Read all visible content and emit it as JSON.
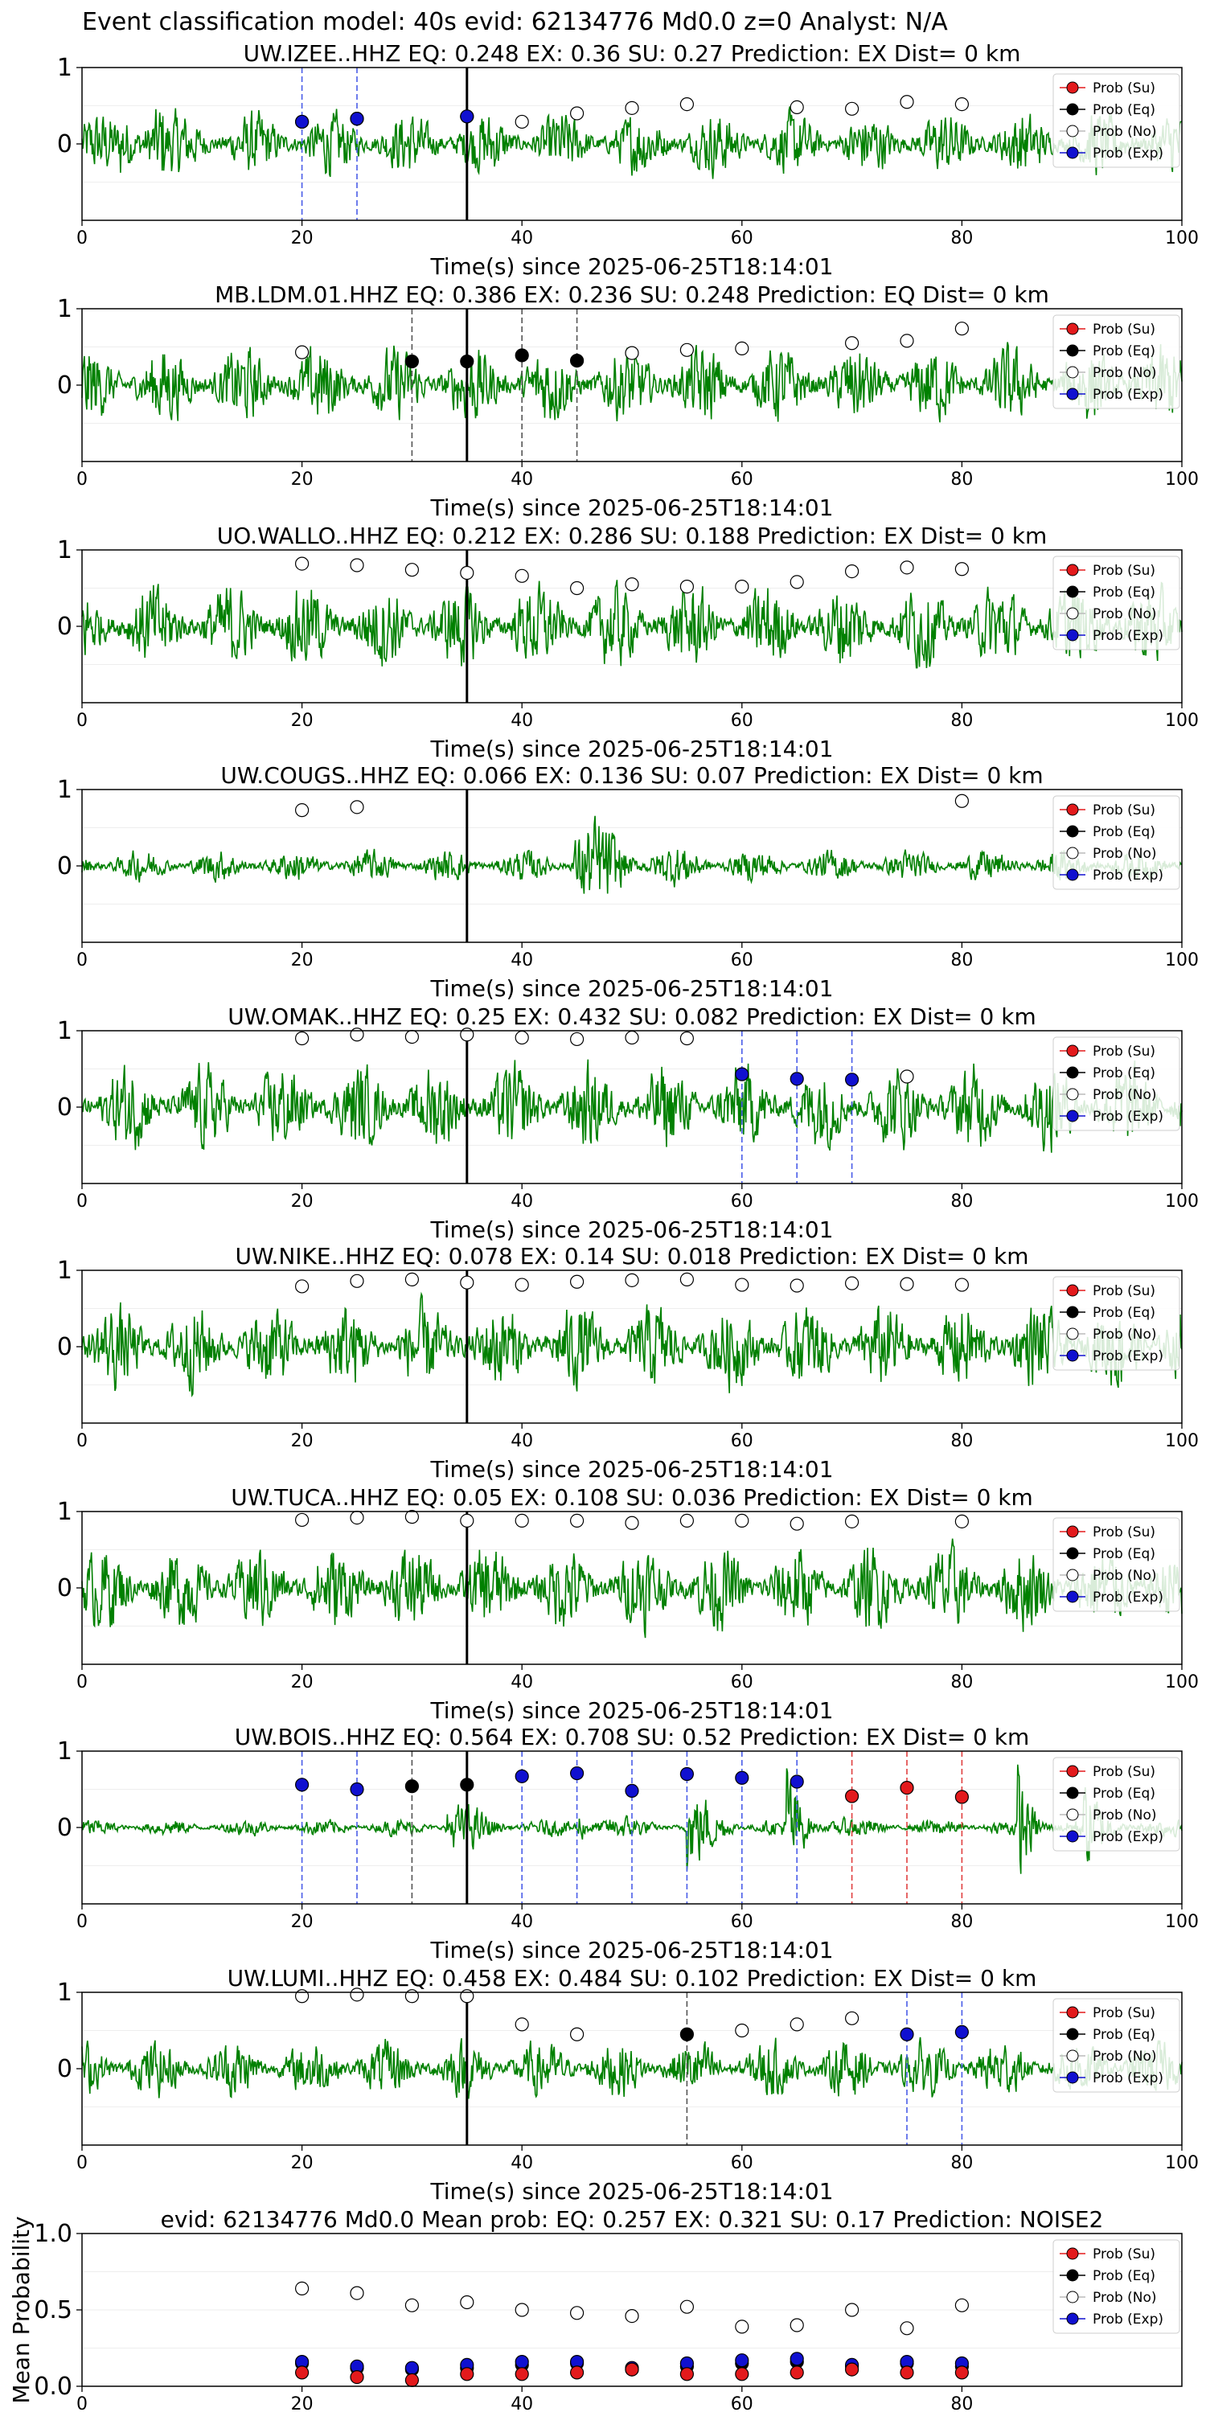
{
  "suptitle": "Event classification model: 40s evid: 62134776 Md0.0 z=0 Analyst: N/A",
  "legend_labels": [
    "Prob (Su)",
    "Prob (Eq)",
    "Prob (No)",
    "Prob (Exp)"
  ],
  "colors": {
    "waveform": "#008000",
    "su": "#e31a1c",
    "eq": "#000000",
    "no": "#ffffff",
    "exp": "#1010d0",
    "exp_line": "#4a5de8",
    "su_line": "#e04040",
    "eq_line": "#555555"
  },
  "chart_data": [
    {
      "type": "line",
      "title": "UW.IZEE..HHZ   EQ: 0.248  EX: 0.36  SU: 0.27   Prediction: EX    Dist= 0 km",
      "xlabel": "Time(s) since 2025-06-25T18:14:01",
      "xlim": [
        0,
        100
      ],
      "ylim": [
        -1,
        1
      ],
      "xticks": [
        0,
        20,
        40,
        60,
        80,
        100
      ],
      "yticks": [
        1,
        0
      ],
      "waveform": "continuous noise, max amplitude near 5 s",
      "no": [
        [
          20,
          0.29
        ],
        [
          25,
          0.33
        ],
        [
          35,
          0.36
        ],
        [
          40,
          0.29
        ],
        [
          45,
          0.4
        ],
        [
          50,
          0.47
        ],
        [
          55,
          0.52
        ],
        [
          65,
          0.48
        ],
        [
          70,
          0.46
        ],
        [
          75,
          0.55
        ],
        [
          80,
          0.52
        ]
      ],
      "exp": [
        [
          20,
          0.29
        ],
        [
          25,
          0.33
        ],
        [
          35,
          0.36
        ]
      ],
      "eq": [],
      "su": [],
      "marks": [
        [
          20,
          "exp"
        ],
        [
          25,
          "exp"
        ],
        [
          35,
          "pick"
        ]
      ]
    },
    {
      "type": "line",
      "title": "MB.LDM.01.HHZ   EQ: 0.386  EX: 0.236  SU: 0.248   Prediction: EQ    Dist= 0 km",
      "xlabel": "Time(s) since 2025-06-25T18:14:01",
      "xlim": [
        0,
        100
      ],
      "ylim": [
        -1,
        1
      ],
      "xticks": [
        0,
        20,
        40,
        60,
        80,
        100
      ],
      "yticks": [
        1,
        0
      ],
      "waveform": "continuous noise",
      "no": [
        [
          20,
          0.43
        ],
        [
          50,
          0.42
        ],
        [
          55,
          0.46
        ],
        [
          60,
          0.48
        ],
        [
          70,
          0.55
        ],
        [
          75,
          0.58
        ],
        [
          80,
          0.74
        ]
      ],
      "exp": [],
      "eq": [
        [
          30,
          0.31
        ],
        [
          35,
          0.31
        ],
        [
          40,
          0.39
        ],
        [
          45,
          0.32
        ]
      ],
      "su": [],
      "marks": [
        [
          30,
          "eq"
        ],
        [
          35,
          "pick"
        ],
        [
          40,
          "eq"
        ],
        [
          45,
          "eq"
        ]
      ]
    },
    {
      "type": "line",
      "title": "UO.WALLO..HHZ   EQ: 0.212  EX: 0.286  SU: 0.188   Prediction: EX    Dist= 0 km",
      "xlabel": "Time(s) since 2025-06-25T18:14:01",
      "xlim": [
        0,
        100
      ],
      "ylim": [
        -1,
        1
      ],
      "xticks": [
        0,
        20,
        40,
        60,
        80,
        100
      ],
      "yticks": [
        1,
        0
      ],
      "waveform": "continuous noise",
      "no": [
        [
          20,
          0.82
        ],
        [
          25,
          0.8
        ],
        [
          30,
          0.74
        ],
        [
          35,
          0.7
        ],
        [
          40,
          0.66
        ],
        [
          45,
          0.5
        ],
        [
          50,
          0.55
        ],
        [
          55,
          0.52
        ],
        [
          60,
          0.52
        ],
        [
          65,
          0.58
        ],
        [
          70,
          0.72
        ],
        [
          75,
          0.77
        ],
        [
          80,
          0.75
        ]
      ],
      "exp": [],
      "eq": [],
      "su": [],
      "marks": [
        [
          35,
          "pick"
        ]
      ]
    },
    {
      "type": "line",
      "title": "UW.COUGS..HHZ   EQ: 0.066  EX: 0.136  SU: 0.07   Prediction: EX    Dist= 0 km",
      "xlabel": "Time(s) since 2025-06-25T18:14:01",
      "xlim": [
        0,
        100
      ],
      "ylim": [
        -1,
        1
      ],
      "xticks": [
        0,
        20,
        40,
        60,
        80,
        100
      ],
      "yticks": [
        1,
        0
      ],
      "waveform": "low noise with burst at 46 s",
      "no": [
        [
          20,
          0.73
        ],
        [
          25,
          0.77
        ],
        [
          80,
          0.85
        ]
      ],
      "exp": [],
      "eq": [],
      "su": [],
      "marks": [
        [
          35,
          "pick"
        ]
      ]
    },
    {
      "type": "line",
      "title": "UW.OMAK..HHZ   EQ: 0.25  EX: 0.432  SU: 0.082   Prediction: EX    Dist= 0 km",
      "xlabel": "Time(s) since 2025-06-25T18:14:01",
      "xlim": [
        0,
        100
      ],
      "ylim": [
        -1,
        1
      ],
      "xticks": [
        0,
        20,
        40,
        60,
        80,
        100
      ],
      "yticks": [
        1,
        0
      ],
      "waveform": "continuous noise",
      "no": [
        [
          20,
          0.9
        ],
        [
          25,
          0.95
        ],
        [
          30,
          0.92
        ],
        [
          35,
          0.95
        ],
        [
          40,
          0.91
        ],
        [
          45,
          0.89
        ],
        [
          50,
          0.91
        ],
        [
          55,
          0.9
        ],
        [
          75,
          0.4
        ]
      ],
      "exp": [
        [
          60,
          0.43
        ],
        [
          65,
          0.37
        ],
        [
          70,
          0.36
        ]
      ],
      "eq": [],
      "su": [],
      "marks": [
        [
          35,
          "pick"
        ],
        [
          60,
          "exp"
        ],
        [
          65,
          "exp"
        ],
        [
          70,
          "exp"
        ]
      ]
    },
    {
      "type": "line",
      "title": "UW.NIKE..HHZ   EQ: 0.078  EX: 0.14  SU: 0.018   Prediction: EX    Dist= 0 km",
      "xlabel": "Time(s) since 2025-06-25T18:14:01",
      "xlim": [
        0,
        100
      ],
      "ylim": [
        -1,
        1
      ],
      "xticks": [
        0,
        20,
        40,
        60,
        80,
        100
      ],
      "yticks": [
        1,
        0
      ],
      "waveform": "continuous noise",
      "no": [
        [
          20,
          0.79
        ],
        [
          25,
          0.86
        ],
        [
          30,
          0.88
        ],
        [
          35,
          0.84
        ],
        [
          40,
          0.81
        ],
        [
          45,
          0.85
        ],
        [
          50,
          0.87
        ],
        [
          55,
          0.88
        ],
        [
          60,
          0.81
        ],
        [
          65,
          0.8
        ],
        [
          70,
          0.83
        ],
        [
          75,
          0.82
        ],
        [
          80,
          0.81
        ]
      ],
      "exp": [],
      "eq": [],
      "su": [],
      "marks": [
        [
          35,
          "pick"
        ]
      ]
    },
    {
      "type": "line",
      "title": "UW.TUCA..HHZ   EQ: 0.05  EX: 0.108  SU: 0.036   Prediction: EX    Dist= 0 km",
      "xlabel": "Time(s) since 2025-06-25T18:14:01",
      "xlim": [
        0,
        100
      ],
      "ylim": [
        -1,
        1
      ],
      "xticks": [
        0,
        20,
        40,
        60,
        80,
        100
      ],
      "yticks": [
        1,
        0
      ],
      "waveform": "continuous noise",
      "no": [
        [
          20,
          0.89
        ],
        [
          25,
          0.92
        ],
        [
          30,
          0.93
        ],
        [
          35,
          0.88
        ],
        [
          40,
          0.88
        ],
        [
          45,
          0.88
        ],
        [
          50,
          0.85
        ],
        [
          55,
          0.88
        ],
        [
          60,
          0.88
        ],
        [
          65,
          0.84
        ],
        [
          70,
          0.87
        ],
        [
          80,
          0.87
        ]
      ],
      "exp": [],
      "eq": [],
      "su": [],
      "marks": [
        [
          35,
          "pick"
        ]
      ]
    },
    {
      "type": "line",
      "title": "UW.BOIS..HHZ   EQ: 0.564  EX: 0.708  SU: 0.52   Prediction: EX    Dist= 0 km",
      "xlabel": "Time(s) since 2025-06-25T18:14:01",
      "xlim": [
        0,
        100
      ],
      "ylim": [
        -1,
        1
      ],
      "xticks": [
        0,
        20,
        40,
        60,
        80,
        100
      ],
      "yticks": [
        1,
        0
      ],
      "waveform": "low noise with bursts at 33, 45, 55, 64, 85 s",
      "no": [],
      "exp": [
        [
          20,
          0.56
        ],
        [
          25,
          0.5
        ],
        [
          40,
          0.67
        ],
        [
          45,
          0.71
        ],
        [
          50,
          0.48
        ],
        [
          55,
          0.7
        ],
        [
          60,
          0.65
        ],
        [
          65,
          0.6
        ]
      ],
      "eq": [
        [
          30,
          0.54
        ],
        [
          35,
          0.56
        ]
      ],
      "su": [
        [
          70,
          0.41
        ],
        [
          75,
          0.52
        ],
        [
          80,
          0.4
        ]
      ],
      "marks": [
        [
          20,
          "exp"
        ],
        [
          25,
          "exp"
        ],
        [
          30,
          "eq"
        ],
        [
          35,
          "pick"
        ],
        [
          40,
          "exp"
        ],
        [
          45,
          "exp"
        ],
        [
          50,
          "exp"
        ],
        [
          55,
          "exp"
        ],
        [
          60,
          "exp"
        ],
        [
          65,
          "exp"
        ],
        [
          70,
          "su"
        ],
        [
          75,
          "su"
        ],
        [
          80,
          "su"
        ]
      ]
    },
    {
      "type": "line",
      "title": "UW.LUMI..HHZ   EQ: 0.458  EX: 0.484  SU: 0.102   Prediction: EX    Dist= 0 km",
      "xlabel": "Time(s) since 2025-06-25T18:14:01",
      "xlim": [
        0,
        100
      ],
      "ylim": [
        -1,
        1
      ],
      "xticks": [
        0,
        20,
        40,
        60,
        80,
        100
      ],
      "yticks": [
        1,
        0
      ],
      "waveform": "continuous noise",
      "no": [
        [
          20,
          0.95
        ],
        [
          25,
          0.97
        ],
        [
          30,
          0.95
        ],
        [
          35,
          0.95
        ],
        [
          40,
          0.58
        ],
        [
          45,
          0.45
        ],
        [
          60,
          0.5
        ],
        [
          65,
          0.58
        ],
        [
          70,
          0.66
        ]
      ],
      "exp": [
        [
          75,
          0.45
        ],
        [
          80,
          0.48
        ]
      ],
      "eq": [
        [
          55,
          0.45
        ]
      ],
      "su": [],
      "marks": [
        [
          35,
          "pick"
        ],
        [
          55,
          "eq"
        ],
        [
          75,
          "exp"
        ],
        [
          80,
          "exp"
        ]
      ]
    },
    {
      "type": "scatter",
      "title": "evid: 62134776  Md0.0   Mean prob:   EQ: 0.257  EX: 0.321  SU: 0.17   Prediction: NOISE2",
      "xlabel": "",
      "ylabel": "Mean Probability",
      "xlim": [
        0,
        100
      ],
      "ylim": [
        0,
        1
      ],
      "xticks": [
        0,
        20,
        40,
        60,
        80
      ],
      "yticks": [
        "0.0",
        "0.5",
        "1.0"
      ],
      "no": [
        [
          20,
          0.64
        ],
        [
          25,
          0.61
        ],
        [
          30,
          0.53
        ],
        [
          35,
          0.55
        ],
        [
          40,
          0.5
        ],
        [
          45,
          0.48
        ],
        [
          50,
          0.46
        ],
        [
          55,
          0.52
        ],
        [
          60,
          0.39
        ],
        [
          65,
          0.4
        ],
        [
          70,
          0.5
        ],
        [
          75,
          0.38
        ],
        [
          80,
          0.53
        ]
      ],
      "eq": [
        [
          20,
          0.15
        ],
        [
          25,
          0.12
        ],
        [
          30,
          0.11
        ],
        [
          35,
          0.12
        ],
        [
          40,
          0.14
        ],
        [
          45,
          0.15
        ],
        [
          50,
          0.11
        ],
        [
          55,
          0.13
        ],
        [
          60,
          0.15
        ],
        [
          65,
          0.16
        ],
        [
          70,
          0.13
        ],
        [
          75,
          0.15
        ],
        [
          80,
          0.13
        ]
      ],
      "exp": [
        [
          20,
          0.16
        ],
        [
          25,
          0.13
        ],
        [
          30,
          0.12
        ],
        [
          35,
          0.14
        ],
        [
          40,
          0.16
        ],
        [
          45,
          0.16
        ],
        [
          50,
          0.12
        ],
        [
          55,
          0.15
        ],
        [
          60,
          0.17
        ],
        [
          65,
          0.18
        ],
        [
          70,
          0.14
        ],
        [
          75,
          0.16
        ],
        [
          80,
          0.15
        ]
      ],
      "su": [
        [
          20,
          0.09
        ],
        [
          25,
          0.06
        ],
        [
          30,
          0.04
        ],
        [
          35,
          0.08
        ],
        [
          40,
          0.08
        ],
        [
          45,
          0.09
        ],
        [
          50,
          0.11
        ],
        [
          55,
          0.08
        ],
        [
          60,
          0.08
        ],
        [
          65,
          0.09
        ],
        [
          70,
          0.11
        ],
        [
          75,
          0.09
        ],
        [
          80,
          0.09
        ]
      ],
      "marks": []
    }
  ]
}
